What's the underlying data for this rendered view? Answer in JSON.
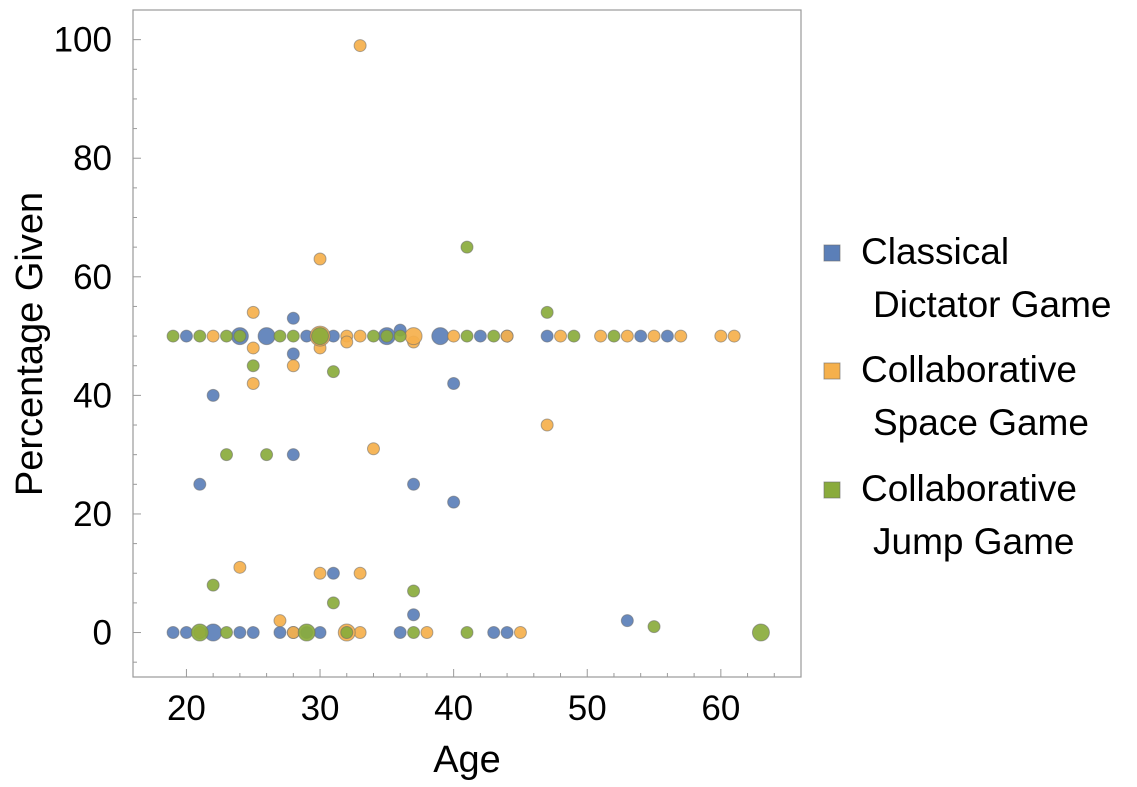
{
  "chart_data": {
    "type": "scatter",
    "xlabel": "Age",
    "ylabel": "Percentage Given",
    "xlim": [
      16,
      66
    ],
    "ylim": [
      -7.5,
      105
    ],
    "xticks": [
      20,
      30,
      40,
      50,
      60
    ],
    "yticks": [
      0,
      20,
      40,
      60,
      80,
      100
    ],
    "legend_position": "right",
    "grid": false,
    "series": [
      {
        "name": "Classical\nDictator Game",
        "color": "#5b7fb8",
        "points": [
          {
            "x": 20,
            "y": 50
          },
          {
            "x": 22,
            "y": 40
          },
          {
            "x": 21,
            "y": 25
          },
          {
            "x": 24,
            "y": 50,
            "size": "large"
          },
          {
            "x": 26,
            "y": 50,
            "size": "large"
          },
          {
            "x": 28,
            "y": 53
          },
          {
            "x": 28,
            "y": 47
          },
          {
            "x": 28,
            "y": 30
          },
          {
            "x": 29,
            "y": 50
          },
          {
            "x": 30,
            "y": 50
          },
          {
            "x": 31,
            "y": 50
          },
          {
            "x": 31,
            "y": 10
          },
          {
            "x": 35,
            "y": 50,
            "size": "large"
          },
          {
            "x": 36,
            "y": 51
          },
          {
            "x": 37,
            "y": 25
          },
          {
            "x": 37,
            "y": 3
          },
          {
            "x": 39,
            "y": 50,
            "size": "large"
          },
          {
            "x": 40,
            "y": 42
          },
          {
            "x": 40,
            "y": 22
          },
          {
            "x": 42,
            "y": 50
          },
          {
            "x": 44,
            "y": 50
          },
          {
            "x": 47,
            "y": 50
          },
          {
            "x": 53,
            "y": 2
          },
          {
            "x": 54,
            "y": 50
          },
          {
            "x": 56,
            "y": 50
          },
          {
            "x": 19,
            "y": 0
          },
          {
            "x": 20,
            "y": 0
          },
          {
            "x": 22,
            "y": 0,
            "size": "large"
          },
          {
            "x": 24,
            "y": 0
          },
          {
            "x": 25,
            "y": 0
          },
          {
            "x": 27,
            "y": 0
          },
          {
            "x": 28,
            "y": 0
          },
          {
            "x": 29,
            "y": 0
          },
          {
            "x": 30,
            "y": 0
          },
          {
            "x": 32,
            "y": 0
          },
          {
            "x": 36,
            "y": 0
          },
          {
            "x": 43,
            "y": 0
          },
          {
            "x": 44,
            "y": 0
          }
        ]
      },
      {
        "name": "Collaborative\nSpace Game",
        "color": "#f5b04c",
        "points": [
          {
            "x": 33,
            "y": 99
          },
          {
            "x": 30,
            "y": 63
          },
          {
            "x": 25,
            "y": 54
          },
          {
            "x": 22,
            "y": 50
          },
          {
            "x": 25,
            "y": 48
          },
          {
            "x": 25,
            "y": 42
          },
          {
            "x": 28,
            "y": 45
          },
          {
            "x": 30,
            "y": 48
          },
          {
            "x": 32,
            "y": 50
          },
          {
            "x": 32,
            "y": 49
          },
          {
            "x": 33,
            "y": 50
          },
          {
            "x": 34,
            "y": 31
          },
          {
            "x": 37,
            "y": 49
          },
          {
            "x": 37,
            "y": 50,
            "size": "large"
          },
          {
            "x": 40,
            "y": 50
          },
          {
            "x": 44,
            "y": 50
          },
          {
            "x": 47,
            "y": 35
          },
          {
            "x": 48,
            "y": 50
          },
          {
            "x": 51,
            "y": 50
          },
          {
            "x": 53,
            "y": 50
          },
          {
            "x": 55,
            "y": 50
          },
          {
            "x": 57,
            "y": 50
          },
          {
            "x": 60,
            "y": 50
          },
          {
            "x": 61,
            "y": 50
          },
          {
            "x": 24,
            "y": 11
          },
          {
            "x": 30,
            "y": 10
          },
          {
            "x": 33,
            "y": 10
          },
          {
            "x": 27,
            "y": 2
          },
          {
            "x": 21,
            "y": 0
          },
          {
            "x": 28,
            "y": 0
          },
          {
            "x": 33,
            "y": 0
          },
          {
            "x": 38,
            "y": 0
          },
          {
            "x": 45,
            "y": 0
          },
          {
            "x": 30,
            "y": 50,
            "size": "xlarge"
          },
          {
            "x": 32,
            "y": 0,
            "size": "large"
          }
        ]
      },
      {
        "name": "Collaborative\nJump Game",
        "color": "#8aab3c",
        "points": [
          {
            "x": 19,
            "y": 50
          },
          {
            "x": 21,
            "y": 50
          },
          {
            "x": 23,
            "y": 50
          },
          {
            "x": 24,
            "y": 50
          },
          {
            "x": 27,
            "y": 50
          },
          {
            "x": 28,
            "y": 50
          },
          {
            "x": 30,
            "y": 50,
            "size": "large"
          },
          {
            "x": 34,
            "y": 50
          },
          {
            "x": 35,
            "y": 50
          },
          {
            "x": 36,
            "y": 50
          },
          {
            "x": 41,
            "y": 50
          },
          {
            "x": 43,
            "y": 50
          },
          {
            "x": 49,
            "y": 50
          },
          {
            "x": 52,
            "y": 50
          },
          {
            "x": 41,
            "y": 65
          },
          {
            "x": 47,
            "y": 54
          },
          {
            "x": 25,
            "y": 45
          },
          {
            "x": 31,
            "y": 44
          },
          {
            "x": 23,
            "y": 30
          },
          {
            "x": 26,
            "y": 30
          },
          {
            "x": 22,
            "y": 8
          },
          {
            "x": 31,
            "y": 5
          },
          {
            "x": 37,
            "y": 7
          },
          {
            "x": 55,
            "y": 1
          },
          {
            "x": 21,
            "y": 0,
            "size": "large"
          },
          {
            "x": 23,
            "y": 0
          },
          {
            "x": 29,
            "y": 0,
            "size": "large"
          },
          {
            "x": 32,
            "y": 0
          },
          {
            "x": 37,
            "y": 0
          },
          {
            "x": 41,
            "y": 0
          },
          {
            "x": 63,
            "y": 0,
            "size": "large"
          }
        ]
      }
    ]
  }
}
